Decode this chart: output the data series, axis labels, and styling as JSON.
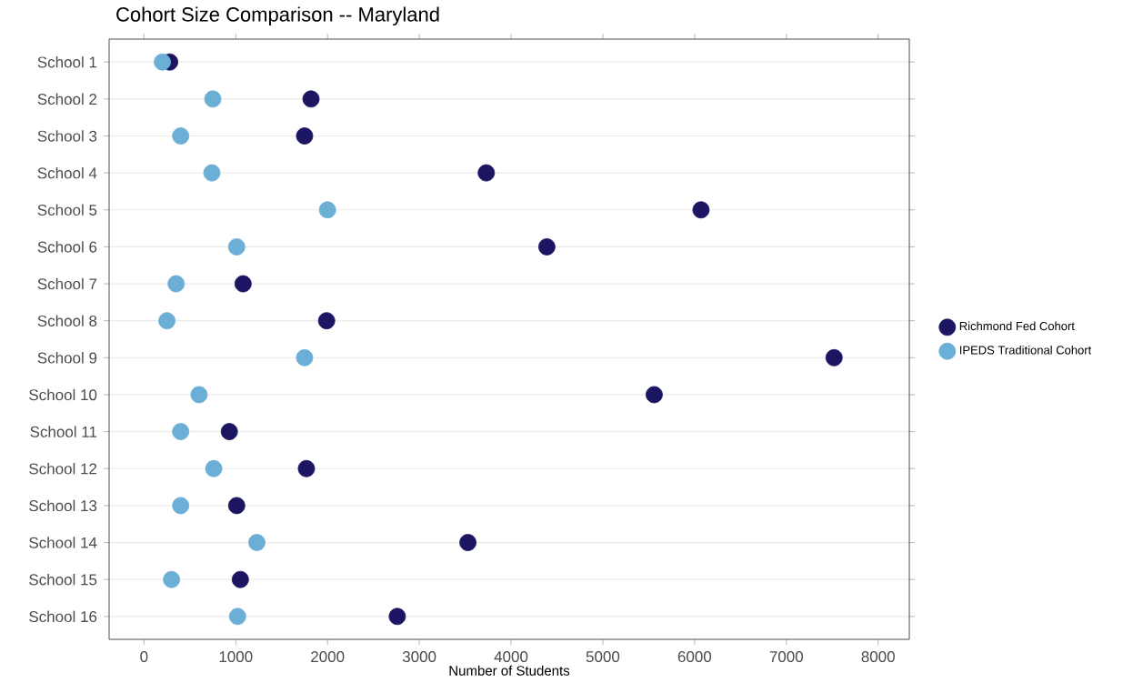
{
  "chart_data": {
    "type": "scatter",
    "title": "Cohort Size Comparison -- Maryland",
    "xlabel": "Number of Students",
    "orientation": "horizontal",
    "categories": [
      "School 1",
      "School 2",
      "School 3",
      "School 4",
      "School 5",
      "School 6",
      "School 7",
      "School 8",
      "School 9",
      "School 10",
      "School 11",
      "School 12",
      "School 13",
      "School 14",
      "School 15",
      "School 16"
    ],
    "series": [
      {
        "name": "Richmond Fed Cohort",
        "color": "#1b1562",
        "values": [
          280,
          1820,
          1750,
          3730,
          6070,
          4390,
          1080,
          1990,
          7520,
          5560,
          930,
          1770,
          1010,
          3530,
          1050,
          2760
        ]
      },
      {
        "name": "IPEDS Traditional Cohort",
        "color": "#6baed6",
        "values": [
          200,
          750,
          400,
          740,
          2000,
          1010,
          350,
          250,
          1750,
          600,
          400,
          760,
          400,
          1230,
          300,
          1020
        ]
      }
    ],
    "xlim": [
      -380,
      8340
    ],
    "xticks": [
      0,
      1000,
      2000,
      3000,
      4000,
      5000,
      6000,
      7000,
      8000
    ],
    "grid": "y",
    "legend": "right",
    "marker": "circle"
  }
}
